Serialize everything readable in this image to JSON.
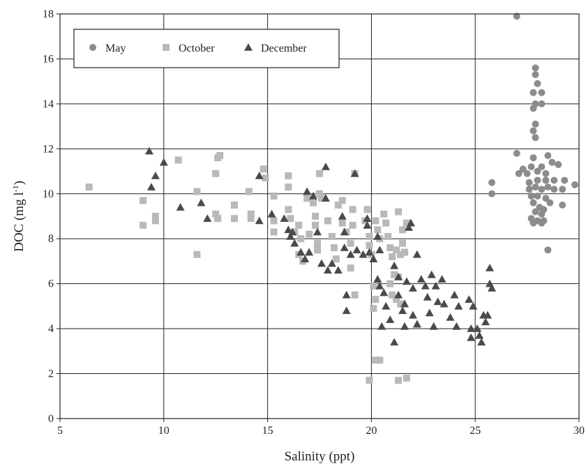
{
  "chart_data": {
    "type": "scatter",
    "title": "",
    "xlabel": "Salinity (ppt)",
    "ylabel": "DOC (mg l",
    "ylabel_sup": "-1",
    "ylabel_close": ")",
    "xlim": [
      5,
      30
    ],
    "ylim": [
      0,
      18
    ],
    "x_ticks": [
      5,
      10,
      15,
      20,
      25,
      30
    ],
    "y_ticks": [
      0,
      2,
      4,
      6,
      8,
      10,
      12,
      14,
      16,
      18
    ],
    "grid": true,
    "legend_position": "top-left",
    "series": [
      {
        "name": "May",
        "marker": "circle",
        "color": "#8c8c8c",
        "points": [
          [
            27.0,
            17.9
          ],
          [
            27.9,
            15.6
          ],
          [
            27.9,
            15.3
          ],
          [
            28.0,
            14.9
          ],
          [
            27.8,
            14.5
          ],
          [
            28.2,
            14.5
          ],
          [
            27.9,
            14.0
          ],
          [
            28.2,
            14.0
          ],
          [
            27.8,
            13.8
          ],
          [
            27.9,
            13.1
          ],
          [
            27.8,
            12.8
          ],
          [
            27.9,
            12.5
          ],
          [
            27.0,
            11.8
          ],
          [
            27.8,
            11.6
          ],
          [
            28.5,
            11.7
          ],
          [
            28.2,
            11.2
          ],
          [
            27.3,
            11.1
          ],
          [
            27.7,
            11.2
          ],
          [
            28.7,
            11.4
          ],
          [
            29.0,
            11.3
          ],
          [
            27.1,
            10.9
          ],
          [
            27.5,
            10.9
          ],
          [
            28.0,
            11.0
          ],
          [
            28.4,
            10.9
          ],
          [
            25.8,
            10.5
          ],
          [
            27.6,
            10.5
          ],
          [
            28.0,
            10.6
          ],
          [
            28.4,
            10.6
          ],
          [
            28.8,
            10.6
          ],
          [
            29.3,
            10.6
          ],
          [
            29.8,
            10.4
          ],
          [
            25.8,
            10.0
          ],
          [
            27.6,
            10.2
          ],
          [
            27.9,
            10.3
          ],
          [
            28.2,
            10.2
          ],
          [
            28.5,
            10.3
          ],
          [
            28.8,
            10.2
          ],
          [
            29.2,
            10.2
          ],
          [
            27.7,
            9.9
          ],
          [
            28.0,
            9.9
          ],
          [
            28.4,
            9.8
          ],
          [
            28.6,
            9.6
          ],
          [
            29.2,
            9.5
          ],
          [
            27.8,
            9.6
          ],
          [
            28.1,
            9.4
          ],
          [
            28.3,
            9.3
          ],
          [
            27.9,
            9.2
          ],
          [
            28.2,
            9.1
          ],
          [
            27.7,
            8.9
          ],
          [
            28.0,
            8.8
          ],
          [
            28.3,
            8.8
          ],
          [
            27.8,
            8.7
          ],
          [
            28.2,
            8.7
          ],
          [
            28.5,
            7.5
          ]
        ]
      },
      {
        "name": "October",
        "marker": "square",
        "color": "#b9b9b9",
        "points": [
          [
            6.4,
            10.3
          ],
          [
            9.0,
            9.7
          ],
          [
            9.0,
            8.6
          ],
          [
            9.6,
            9.0
          ],
          [
            9.6,
            8.8
          ],
          [
            10.7,
            11.5
          ],
          [
            11.6,
            10.1
          ],
          [
            11.6,
            7.3
          ],
          [
            12.6,
            11.6
          ],
          [
            12.7,
            11.7
          ],
          [
            12.5,
            10.9
          ],
          [
            12.5,
            9.1
          ],
          [
            12.6,
            8.9
          ],
          [
            13.4,
            9.5
          ],
          [
            13.4,
            8.9
          ],
          [
            14.1,
            10.1
          ],
          [
            14.2,
            9.1
          ],
          [
            14.2,
            8.9
          ],
          [
            14.8,
            11.1
          ],
          [
            14.9,
            10.7
          ],
          [
            15.3,
            9.9
          ],
          [
            15.3,
            8.8
          ],
          [
            15.3,
            8.3
          ],
          [
            16.0,
            10.8
          ],
          [
            16.0,
            10.3
          ],
          [
            16.0,
            9.3
          ],
          [
            16.1,
            8.9
          ],
          [
            16.3,
            8.3
          ],
          [
            16.5,
            8.6
          ],
          [
            16.6,
            8.0
          ],
          [
            16.5,
            7.3
          ],
          [
            16.7,
            7.0
          ],
          [
            16.9,
            9.8
          ],
          [
            17.0,
            8.2
          ],
          [
            17.2,
            9.6
          ],
          [
            17.3,
            9.0
          ],
          [
            17.3,
            8.6
          ],
          [
            17.4,
            7.8
          ],
          [
            17.4,
            7.5
          ],
          [
            17.5,
            10.0
          ],
          [
            17.6,
            9.8
          ],
          [
            17.5,
            10.9
          ],
          [
            17.9,
            8.8
          ],
          [
            18.1,
            8.1
          ],
          [
            18.2,
            7.6
          ],
          [
            18.3,
            7.1
          ],
          [
            18.4,
            9.5
          ],
          [
            18.6,
            9.7
          ],
          [
            18.6,
            8.7
          ],
          [
            18.8,
            8.3
          ],
          [
            19.0,
            7.8
          ],
          [
            19.0,
            6.7
          ],
          [
            19.1,
            8.6
          ],
          [
            19.1,
            9.3
          ],
          [
            19.2,
            10.9
          ],
          [
            19.2,
            5.5
          ],
          [
            19.7,
            8.8
          ],
          [
            19.8,
            9.3
          ],
          [
            19.9,
            8.1
          ],
          [
            19.9,
            7.7
          ],
          [
            20.0,
            7.3
          ],
          [
            20.2,
            8.8
          ],
          [
            20.3,
            8.4
          ],
          [
            20.4,
            8.0
          ],
          [
            20.1,
            5.9
          ],
          [
            20.2,
            5.3
          ],
          [
            20.1,
            4.9
          ],
          [
            20.2,
            2.6
          ],
          [
            20.4,
            2.6
          ],
          [
            19.9,
            1.7
          ],
          [
            20.6,
            9.1
          ],
          [
            20.7,
            8.7
          ],
          [
            20.8,
            8.1
          ],
          [
            20.9,
            7.6
          ],
          [
            21.0,
            7.2
          ],
          [
            21.1,
            6.4
          ],
          [
            21.2,
            5.3
          ],
          [
            21.3,
            9.2
          ],
          [
            21.5,
            8.4
          ],
          [
            21.6,
            7.4
          ],
          [
            21.3,
            1.7
          ],
          [
            21.7,
            1.8
          ],
          [
            20.9,
            6.0
          ],
          [
            21.3,
            6.3
          ],
          [
            21.0,
            5.5
          ],
          [
            21.4,
            5.1
          ],
          [
            21.7,
            8.7
          ],
          [
            21.5,
            7.8
          ],
          [
            21.4,
            7.3
          ],
          [
            21.2,
            7.5
          ]
        ]
      },
      {
        "name": "December",
        "marker": "triangle",
        "color": "#4a4a4a",
        "points": [
          [
            9.3,
            11.9
          ],
          [
            10.0,
            11.4
          ],
          [
            9.6,
            10.8
          ],
          [
            9.4,
            10.3
          ],
          [
            10.8,
            9.4
          ],
          [
            11.8,
            9.6
          ],
          [
            12.1,
            8.9
          ],
          [
            14.6,
            10.8
          ],
          [
            14.6,
            8.8
          ],
          [
            15.2,
            9.1
          ],
          [
            15.8,
            8.9
          ],
          [
            16.0,
            8.4
          ],
          [
            16.1,
            8.1
          ],
          [
            16.3,
            7.8
          ],
          [
            16.2,
            8.3
          ],
          [
            16.6,
            7.4
          ],
          [
            16.8,
            7.1
          ],
          [
            17.0,
            7.4
          ],
          [
            16.9,
            10.1
          ],
          [
            17.2,
            9.9
          ],
          [
            17.4,
            8.3
          ],
          [
            17.6,
            6.9
          ],
          [
            17.8,
            11.2
          ],
          [
            17.8,
            9.8
          ],
          [
            17.9,
            6.6
          ],
          [
            18.1,
            6.9
          ],
          [
            18.4,
            6.6
          ],
          [
            18.6,
            9.0
          ],
          [
            18.7,
            8.3
          ],
          [
            18.7,
            7.6
          ],
          [
            18.8,
            5.5
          ],
          [
            18.8,
            4.8
          ],
          [
            19.0,
            7.3
          ],
          [
            19.2,
            10.9
          ],
          [
            19.3,
            7.5
          ],
          [
            19.6,
            7.3
          ],
          [
            19.8,
            8.9
          ],
          [
            19.8,
            8.6
          ],
          [
            19.9,
            7.4
          ],
          [
            20.1,
            7.1
          ],
          [
            20.3,
            8.1
          ],
          [
            20.4,
            7.5
          ],
          [
            20.3,
            6.2
          ],
          [
            20.4,
            5.9
          ],
          [
            20.6,
            5.6
          ],
          [
            20.7,
            5.0
          ],
          [
            20.5,
            4.1
          ],
          [
            20.9,
            4.4
          ],
          [
            21.1,
            3.4
          ],
          [
            21.1,
            6.8
          ],
          [
            21.3,
            6.3
          ],
          [
            21.3,
            5.5
          ],
          [
            21.5,
            4.8
          ],
          [
            21.6,
            4.1
          ],
          [
            21.6,
            5.1
          ],
          [
            21.7,
            6.1
          ],
          [
            21.8,
            8.5
          ],
          [
            21.9,
            8.7
          ],
          [
            22.0,
            5.8
          ],
          [
            22.0,
            4.6
          ],
          [
            22.2,
            7.3
          ],
          [
            22.2,
            4.2
          ],
          [
            22.4,
            6.2
          ],
          [
            22.6,
            5.9
          ],
          [
            22.7,
            5.4
          ],
          [
            22.8,
            4.7
          ],
          [
            22.9,
            6.4
          ],
          [
            23.0,
            4.1
          ],
          [
            23.1,
            5.9
          ],
          [
            23.2,
            5.2
          ],
          [
            23.4,
            6.2
          ],
          [
            23.5,
            5.1
          ],
          [
            23.8,
            4.5
          ],
          [
            24.0,
            5.5
          ],
          [
            24.1,
            4.1
          ],
          [
            24.2,
            5.0
          ],
          [
            24.7,
            5.3
          ],
          [
            24.8,
            3.6
          ],
          [
            24.9,
            5.0
          ],
          [
            24.8,
            4.0
          ],
          [
            25.1,
            4.0
          ],
          [
            25.2,
            3.7
          ],
          [
            25.3,
            3.4
          ],
          [
            25.4,
            4.6
          ],
          [
            25.5,
            4.3
          ],
          [
            25.6,
            4.6
          ],
          [
            25.7,
            6.7
          ],
          [
            25.7,
            6.0
          ],
          [
            25.8,
            5.8
          ]
        ]
      }
    ]
  }
}
